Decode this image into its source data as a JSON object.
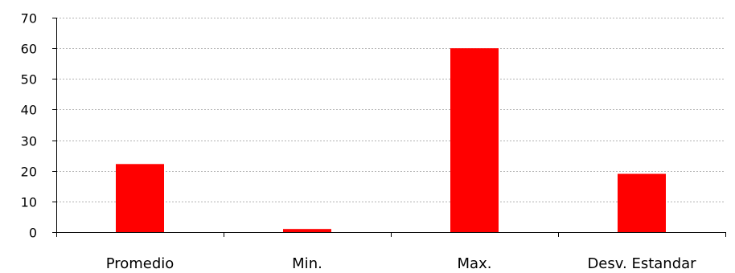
{
  "chart_data": {
    "type": "bar",
    "categories": [
      "Promedio",
      "Min.",
      "Max.",
      "Desv. Estandar"
    ],
    "values": [
      22.2,
      1,
      60,
      19
    ],
    "ylim": [
      0,
      70
    ],
    "yticks": [
      0,
      10,
      20,
      30,
      40,
      50,
      60,
      70
    ],
    "grid": true,
    "legend": "none",
    "bar_color": "#ff0000",
    "title": "",
    "xlabel": "",
    "ylabel": ""
  }
}
